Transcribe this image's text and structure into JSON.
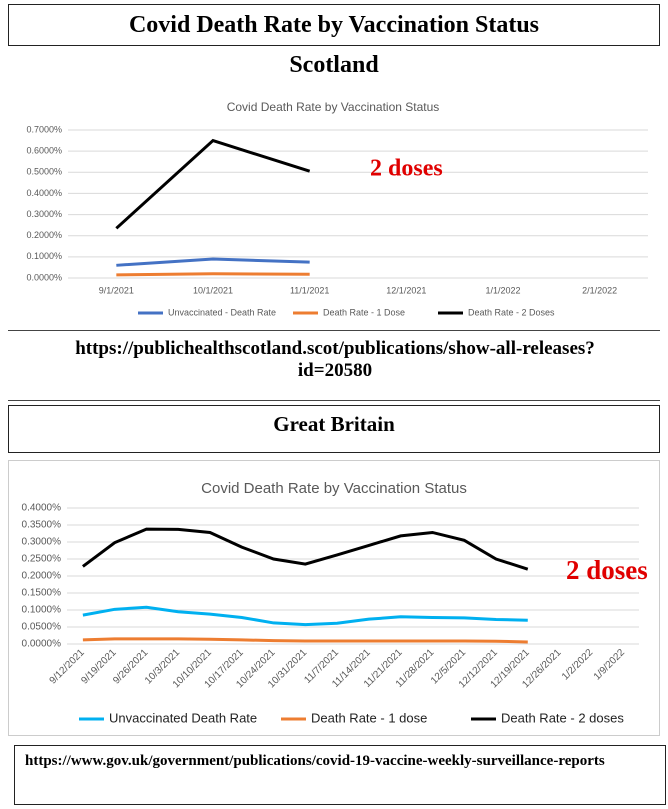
{
  "title": "Covid Death Rate by Vaccination Status",
  "sections": [
    {
      "heading": "Scotland",
      "source": "https://publichealthscotland.scot/publications/show-all-releases?id=20580"
    },
    {
      "heading": "Great Britain",
      "source": "https://www.gov.uk/government/publications/covid-19-vaccine-weekly-surveillance-reports"
    }
  ],
  "chart_data": [
    {
      "type": "line",
      "title": "Covid Death Rate by Vaccination Status",
      "categories": [
        "9/1/2021",
        "10/1/2021",
        "11/1/2021",
        "12/1/2021",
        "1/1/2022",
        "2/1/2022"
      ],
      "series": [
        {
          "name": "Unvaccinated - Death Rate",
          "color": "#4472c4",
          "values": [
            0.06,
            0.09,
            0.075,
            null,
            null,
            null
          ]
        },
        {
          "name": "Death Rate - 1 Dose",
          "color": "#ed7d31",
          "values": [
            0.015,
            0.02,
            0.018,
            null,
            null,
            null
          ]
        },
        {
          "name": "Death Rate - 2 Doses",
          "color": "#000000",
          "values": [
            0.235,
            0.65,
            0.505,
            null,
            null,
            null
          ]
        }
      ],
      "ylim": [
        0,
        0.7
      ],
      "yticks": [
        {
          "value": 0,
          "label": "0.0000%"
        },
        {
          "value": 0.1,
          "label": "0.1000%"
        },
        {
          "value": 0.2,
          "label": "0.2000%"
        },
        {
          "value": 0.3,
          "label": "0.3000%"
        },
        {
          "value": 0.4,
          "label": "0.4000%"
        },
        {
          "value": 0.5,
          "label": "0.5000%"
        },
        {
          "value": 0.6,
          "label": "0.6000%"
        },
        {
          "value": 0.7,
          "label": "0.7000%"
        }
      ],
      "grid": true,
      "annotation": "2 doses"
    },
    {
      "type": "line",
      "title": "Covid Death Rate by Vaccination Status",
      "categories": [
        "9/12/2021",
        "9/19/2021",
        "9/26/2021",
        "10/3/2021",
        "10/10/2021",
        "10/17/2021",
        "10/24/2021",
        "10/31/2021",
        "11/7/2021",
        "11/14/2021",
        "11/21/2021",
        "11/28/2021",
        "12/5/2021",
        "12/12/2021",
        "12/19/2021",
        "12/26/2021",
        "1/2/2022",
        "1/9/2022"
      ],
      "series": [
        {
          "name": "Unvaccinated Death Rate",
          "color": "#00b0f0",
          "values": [
            0.085,
            0.102,
            0.108,
            0.095,
            0.088,
            0.078,
            0.062,
            0.057,
            0.061,
            0.073,
            0.08,
            0.078,
            0.077,
            0.072,
            0.07,
            null,
            null,
            null
          ]
        },
        {
          "name": "Death Rate - 1 dose",
          "color": "#ed7d31",
          "values": [
            0.012,
            0.015,
            0.015,
            0.015,
            0.014,
            0.012,
            0.01,
            0.009,
            0.009,
            0.009,
            0.009,
            0.009,
            0.009,
            0.008,
            0.006,
            null,
            null,
            null
          ]
        },
        {
          "name": "Death Rate - 2 doses",
          "color": "#000000",
          "values": [
            0.228,
            0.298,
            0.338,
            0.337,
            0.328,
            0.285,
            0.25,
            0.235,
            0.262,
            0.29,
            0.318,
            0.328,
            0.305,
            0.25,
            0.22,
            null,
            null,
            null
          ]
        }
      ],
      "ylim": [
        0,
        0.4
      ],
      "yticks": [
        {
          "value": 0,
          "label": "0.0000%"
        },
        {
          "value": 0.05,
          "label": "0.0500%"
        },
        {
          "value": 0.1,
          "label": "0.1000%"
        },
        {
          "value": 0.15,
          "label": "0.1500%"
        },
        {
          "value": 0.2,
          "label": "0.2000%"
        },
        {
          "value": 0.25,
          "label": "0.2500%"
        },
        {
          "value": 0.3,
          "label": "0.3000%"
        },
        {
          "value": 0.35,
          "label": "0.3500%"
        },
        {
          "value": 0.4,
          "label": "0.4000%"
        }
      ],
      "grid": true,
      "annotation": "2 doses"
    }
  ]
}
